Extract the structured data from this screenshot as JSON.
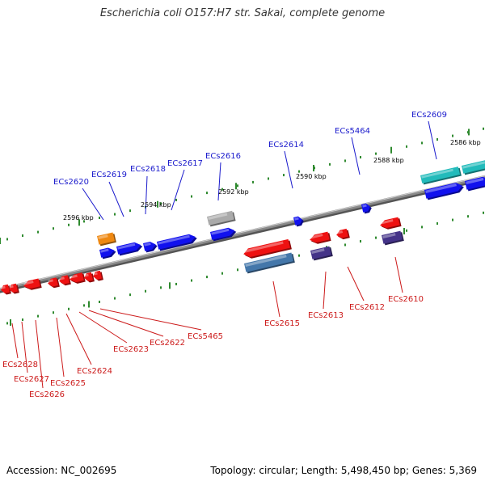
{
  "title": "Escherichia coli O157:H7 str. Sakai, complete genome",
  "footer": {
    "accession": "Accession: NC_002695",
    "summary": "Topology: circular; Length: 5,498,450 bp; Genes: 5,369"
  },
  "colors": {
    "backbone": "#8a8a8a",
    "forward_label": "#1a1acc",
    "reverse_label": "#cc1a1a",
    "tick": "#2f8a2f",
    "blue_gene": "#1111ee",
    "red_gene": "#ee1111",
    "cyan_gene": "#22bbbb",
    "orange_gene": "#ee8811",
    "gray_gene": "#aaaaaa",
    "purple_gene": "#443388",
    "steel_gene": "#4477aa"
  },
  "scale_labels": [
    "2596 kbp",
    "2594 kbp",
    "2592 kbp",
    "2590 kbp",
    "2588 kbp",
    "2586 kbp"
  ],
  "forward_labels": [
    "ECs2620",
    "ECs2619",
    "ECs2618",
    "ECs2617",
    "ECs2616",
    "ECs2614",
    "ECs5464",
    "ECs2609"
  ],
  "reverse_labels": [
    "ECs2628",
    "ECs2627",
    "ECs2626",
    "ECs2625",
    "ECs2624",
    "ECs2623",
    "ECs2622",
    "ECs5465",
    "ECs2615",
    "ECs2613",
    "ECs2612",
    "ECs2610"
  ]
}
